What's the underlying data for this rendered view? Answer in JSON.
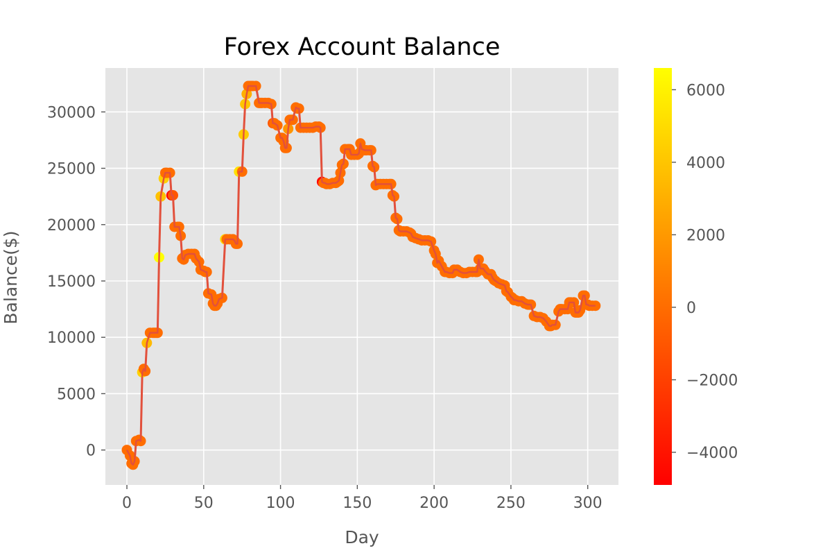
{
  "chart_data": {
    "type": "scatter",
    "title": "Forex Account Balance",
    "xlabel": "Day",
    "ylabel": "Balance($)",
    "xlim": [
      -14,
      320
    ],
    "ylim": [
      -3100,
      33900
    ],
    "xticks": [
      0,
      50,
      100,
      150,
      200,
      250,
      300
    ],
    "yticks": [
      0,
      5000,
      10000,
      15000,
      20000,
      25000,
      30000
    ],
    "grid": true,
    "colormap": "autumn",
    "colorbar": {
      "min": -4900,
      "max": 6600,
      "ticks": [
        -4000,
        -2000,
        0,
        2000,
        4000,
        6000
      ]
    },
    "series": [
      {
        "line_color": "#e2503c",
        "x": [
          0,
          2,
          3,
          4,
          5,
          6,
          8,
          9,
          10,
          11,
          12,
          13,
          15,
          17,
          18,
          19,
          20,
          21,
          22,
          24,
          25,
          26,
          28,
          29,
          30,
          31,
          33,
          34,
          35,
          36,
          37,
          38,
          40,
          42,
          44,
          45,
          47,
          48,
          50,
          51,
          52,
          53,
          55,
          56,
          57,
          58,
          59,
          60,
          62,
          64,
          65,
          67,
          69,
          70,
          71,
          72,
          73,
          75,
          76,
          77,
          78,
          79,
          80,
          81,
          82,
          84,
          86,
          87,
          88,
          90,
          92,
          94,
          95,
          96,
          98,
          100,
          101,
          102,
          103,
          104,
          105,
          106,
          107,
          108,
          110,
          111,
          112,
          113,
          115,
          117,
          119,
          121,
          123,
          125,
          126,
          127,
          128,
          129,
          130,
          132,
          134,
          136,
          137,
          138,
          139,
          140,
          141,
          142,
          144,
          145,
          146,
          148,
          150,
          151,
          152,
          153,
          155,
          156,
          158,
          159,
          160,
          161,
          162,
          163,
          165,
          167,
          169,
          171,
          172,
          173,
          174,
          175,
          176,
          177,
          178,
          180,
          182,
          184,
          185,
          186,
          188,
          190,
          192,
          194,
          196,
          198,
          200,
          201,
          202,
          203,
          205,
          207,
          208,
          210,
          212,
          213,
          215,
          217,
          219,
          221,
          223,
          225,
          227,
          228,
          229,
          230,
          231,
          232,
          233,
          235,
          237,
          238,
          239,
          240,
          242,
          244,
          246,
          247,
          248,
          250,
          251,
          252,
          253,
          255,
          257,
          259,
          261,
          262,
          263,
          265,
          267,
          269,
          271,
          273,
          275,
          276,
          277,
          279,
          281,
          282,
          283,
          285,
          287,
          288,
          289,
          291,
          292,
          293,
          294,
          295,
          297,
          298,
          299,
          300,
          301,
          303,
          305
        ],
        "y": [
          0,
          -500,
          -1200,
          -1300,
          -1000,
          800,
          900,
          800,
          6900,
          7200,
          7000,
          9500,
          10400,
          10400,
          10400,
          10400,
          10400,
          17100,
          22500,
          24100,
          24600,
          24600,
          24600,
          22600,
          22600,
          19800,
          19800,
          19800,
          19000,
          17000,
          16900,
          17300,
          17400,
          17400,
          17400,
          17000,
          16700,
          16000,
          15900,
          15800,
          15800,
          13900,
          13800,
          13000,
          12800,
          12800,
          13000,
          13400,
          13500,
          18700,
          18700,
          18700,
          18700,
          18600,
          18300,
          18300,
          24700,
          24700,
          28000,
          30700,
          31600,
          32300,
          32300,
          32300,
          32300,
          32300,
          30800,
          30800,
          30800,
          30800,
          30800,
          30700,
          29000,
          29000,
          28800,
          27700,
          27700,
          27400,
          26800,
          26800,
          28500,
          29300,
          29300,
          29300,
          30400,
          30300,
          30300,
          28600,
          28600,
          28600,
          28600,
          28600,
          28700,
          28700,
          28600,
          23800,
          23700,
          23700,
          23600,
          23600,
          23700,
          23700,
          23800,
          23900,
          24600,
          25300,
          25400,
          26700,
          26700,
          26700,
          26200,
          26200,
          26200,
          26300,
          27200,
          26700,
          26600,
          26600,
          26600,
          26600,
          25200,
          25100,
          23500,
          23600,
          23600,
          23600,
          23600,
          23600,
          23600,
          22600,
          22500,
          20600,
          20500,
          19500,
          19400,
          19400,
          19400,
          19300,
          19200,
          18900,
          18800,
          18700,
          18600,
          18600,
          18600,
          18500,
          17700,
          17400,
          16600,
          16800,
          16300,
          15800,
          15800,
          15700,
          15700,
          16000,
          16000,
          15800,
          15700,
          15700,
          15800,
          15800,
          15800,
          15800,
          16900,
          16100,
          16100,
          16100,
          15900,
          15600,
          15600,
          15300,
          15100,
          15000,
          14800,
          14700,
          14600,
          14100,
          14000,
          13600,
          13500,
          13300,
          13300,
          13200,
          13200,
          13000,
          12900,
          12900,
          12900,
          11900,
          11800,
          11800,
          11700,
          11400,
          11000,
          11000,
          11100,
          11100,
          12300,
          12500,
          12500,
          12500,
          12500,
          13100,
          13100,
          13100,
          12200,
          12200,
          12200,
          12400,
          13700,
          13700,
          12900,
          12900,
          12800,
          12800,
          12800
        ],
        "c": [
          0,
          0,
          0,
          0,
          0,
          0,
          0,
          0,
          4500,
          0,
          0,
          3500,
          0,
          0,
          0,
          0,
          0,
          6600,
          3800,
          4500,
          0,
          0,
          0,
          -4900,
          -1000,
          0,
          0,
          0,
          0,
          0,
          0,
          0,
          0,
          0,
          0,
          0,
          0,
          0,
          0,
          0,
          0,
          0,
          0,
          0,
          0,
          0,
          0,
          0,
          0,
          4800,
          0,
          0,
          0,
          0,
          0,
          0,
          5200,
          0,
          4200,
          4000,
          3000,
          0,
          0,
          0,
          0,
          0,
          0,
          0,
          0,
          0,
          0,
          0,
          -1000,
          0,
          0,
          0,
          0,
          0,
          0,
          0,
          1800,
          0,
          0,
          0,
          0,
          0,
          0,
          0,
          0,
          0,
          0,
          0,
          0,
          0,
          0,
          -4800,
          0,
          0,
          0,
          0,
          0,
          0,
          0,
          0,
          0,
          0,
          0,
          0,
          0,
          0,
          0,
          0,
          0,
          0,
          0,
          0,
          0,
          0,
          0,
          0,
          0,
          0,
          0,
          0,
          0,
          0,
          0,
          0,
          0,
          0,
          0,
          0,
          0,
          0,
          0,
          0,
          0,
          0,
          0,
          0,
          0,
          0,
          0,
          0,
          0,
          0,
          0,
          0,
          0,
          0,
          0,
          0,
          0,
          0,
          0,
          0,
          0,
          0,
          0,
          0,
          0,
          0,
          0,
          0,
          0,
          0,
          0,
          0,
          0,
          0,
          0,
          0,
          0,
          0,
          0,
          0,
          0,
          0,
          0,
          0,
          0,
          0,
          0,
          0,
          0,
          0,
          0,
          0,
          0,
          0,
          0,
          0,
          0,
          0,
          0,
          0,
          0,
          0,
          0,
          0,
          0,
          0,
          0,
          0,
          0,
          0,
          0,
          0,
          0,
          0,
          0,
          0,
          0,
          0,
          0,
          0,
          0
        ]
      }
    ]
  }
}
